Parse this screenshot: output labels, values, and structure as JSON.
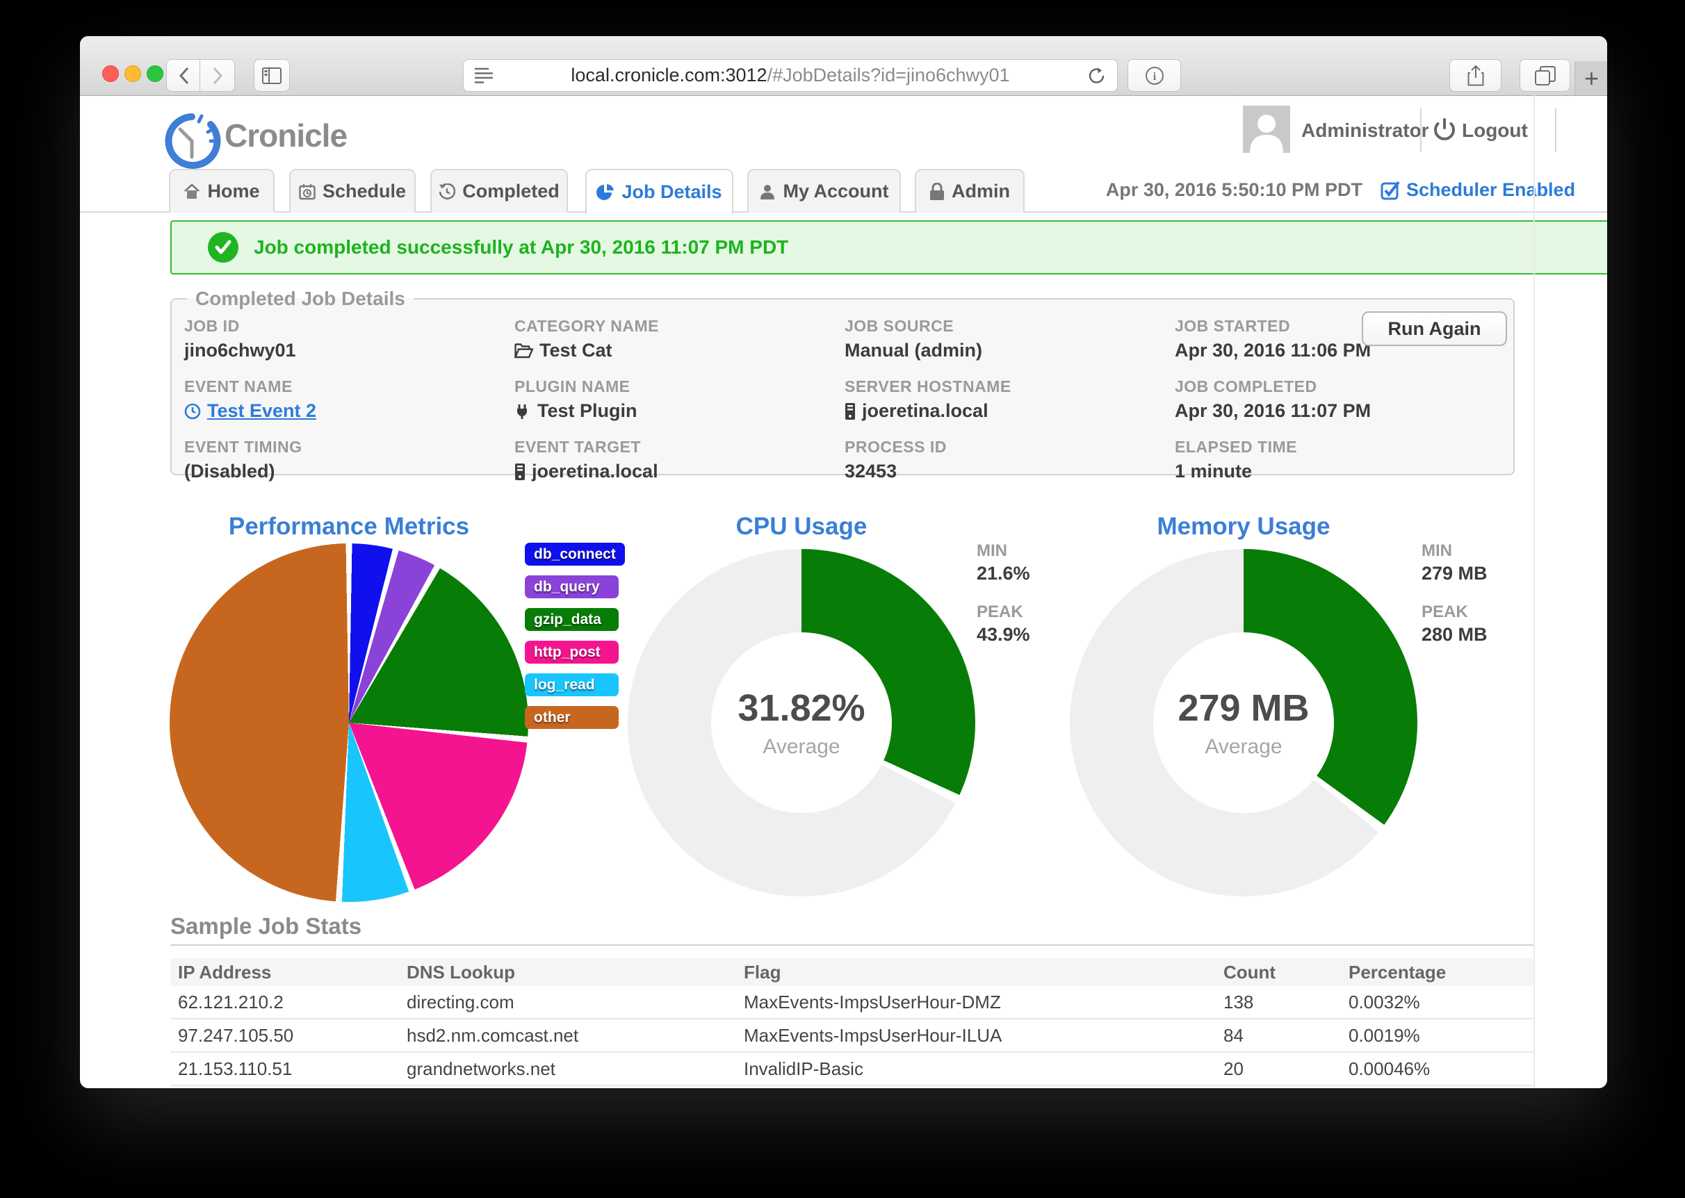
{
  "browser": {
    "url_host": "local.cronicle.com:3012",
    "url_path": "/#JobDetails?id=jino6chwy01",
    "new_tab_label": "+"
  },
  "header": {
    "app_name": "Cronicle",
    "user_name": "Administrator",
    "logout_label": "Logout"
  },
  "nav": {
    "tabs": [
      {
        "label": "Home"
      },
      {
        "label": "Schedule"
      },
      {
        "label": "Completed"
      },
      {
        "label": "Job Details"
      },
      {
        "label": "My Account"
      },
      {
        "label": "Admin"
      }
    ],
    "datetime": "Apr 30, 2016 5:50:10 PM PDT",
    "scheduler_label": "Scheduler Enabled"
  },
  "banner": {
    "message": "Job completed successfully at Apr 30, 2016 11:07 PM PDT"
  },
  "job_details": {
    "legend": "Completed Job Details",
    "run_again_label": "Run Again",
    "fields": [
      {
        "label": "JOB ID",
        "value": "jino6chwy01"
      },
      {
        "label": "CATEGORY NAME",
        "value": "Test Cat"
      },
      {
        "label": "JOB SOURCE",
        "value": "Manual (admin)"
      },
      {
        "label": "JOB STARTED",
        "value": "Apr 30, 2016 11:06 PM"
      },
      {
        "label": "EVENT NAME",
        "value": "Test Event 2"
      },
      {
        "label": "PLUGIN NAME",
        "value": "Test Plugin"
      },
      {
        "label": "SERVER HOSTNAME",
        "value": "joeretina.local"
      },
      {
        "label": "JOB COMPLETED",
        "value": "Apr 30, 2016 11:07 PM"
      },
      {
        "label": "EVENT TIMING",
        "value": "(Disabled)"
      },
      {
        "label": "EVENT TARGET",
        "value": "joeretina.local"
      },
      {
        "label": "PROCESS ID",
        "value": "32453"
      },
      {
        "label": "ELAPSED TIME",
        "value": "1 minute"
      }
    ]
  },
  "chart_data": [
    {
      "type": "pie",
      "name": "performance",
      "title": "Performance Metrics",
      "labels": [
        "db_connect",
        "db_query",
        "gzip_data",
        "http_post",
        "log_read",
        "other"
      ],
      "values": [
        4.2,
        4.0,
        18.3,
        17.8,
        6.6,
        49.1
      ],
      "colors": [
        "#1010ee",
        "#8a42d8",
        "#077d07",
        "#f5148f",
        "#18c5fc",
        "#c7671f"
      ],
      "legend_position": "right"
    },
    {
      "type": "donut",
      "name": "cpu",
      "title": "CPU Usage",
      "center_value": "31.82%",
      "center_label": "Average",
      "min_label": "MIN",
      "min_value": "21.6%",
      "peak_label": "PEAK",
      "peak_value": "43.9%",
      "average_percent": 31.82,
      "arc_degrees": 114.6,
      "arc_color": "#077d07",
      "track_color": "#efefef"
    },
    {
      "type": "donut",
      "name": "memory",
      "title": "Memory Usage",
      "center_value": "279 MB",
      "center_label": "Average",
      "min_label": "MIN",
      "min_value": "279 MB",
      "peak_label": "PEAK",
      "peak_value": "280 MB",
      "arc_degrees": 126,
      "arc_color": "#077d07",
      "track_color": "#efefef"
    }
  ],
  "stats_table": {
    "title": "Sample Job Stats",
    "columns": [
      "IP Address",
      "DNS Lookup",
      "Flag",
      "Count",
      "Percentage"
    ],
    "rows": [
      [
        "62.121.210.2",
        "directing.com",
        "MaxEvents-ImpsUserHour-DMZ",
        "138",
        "0.0032%"
      ],
      [
        "97.247.105.50",
        "hsd2.nm.comcast.net",
        "MaxEvents-ImpsUserHour-ILUA",
        "84",
        "0.0019%"
      ],
      [
        "21.153.110.51",
        "grandnetworks.net",
        "InvalidIP-Basic",
        "20",
        "0.00046%"
      ]
    ]
  }
}
